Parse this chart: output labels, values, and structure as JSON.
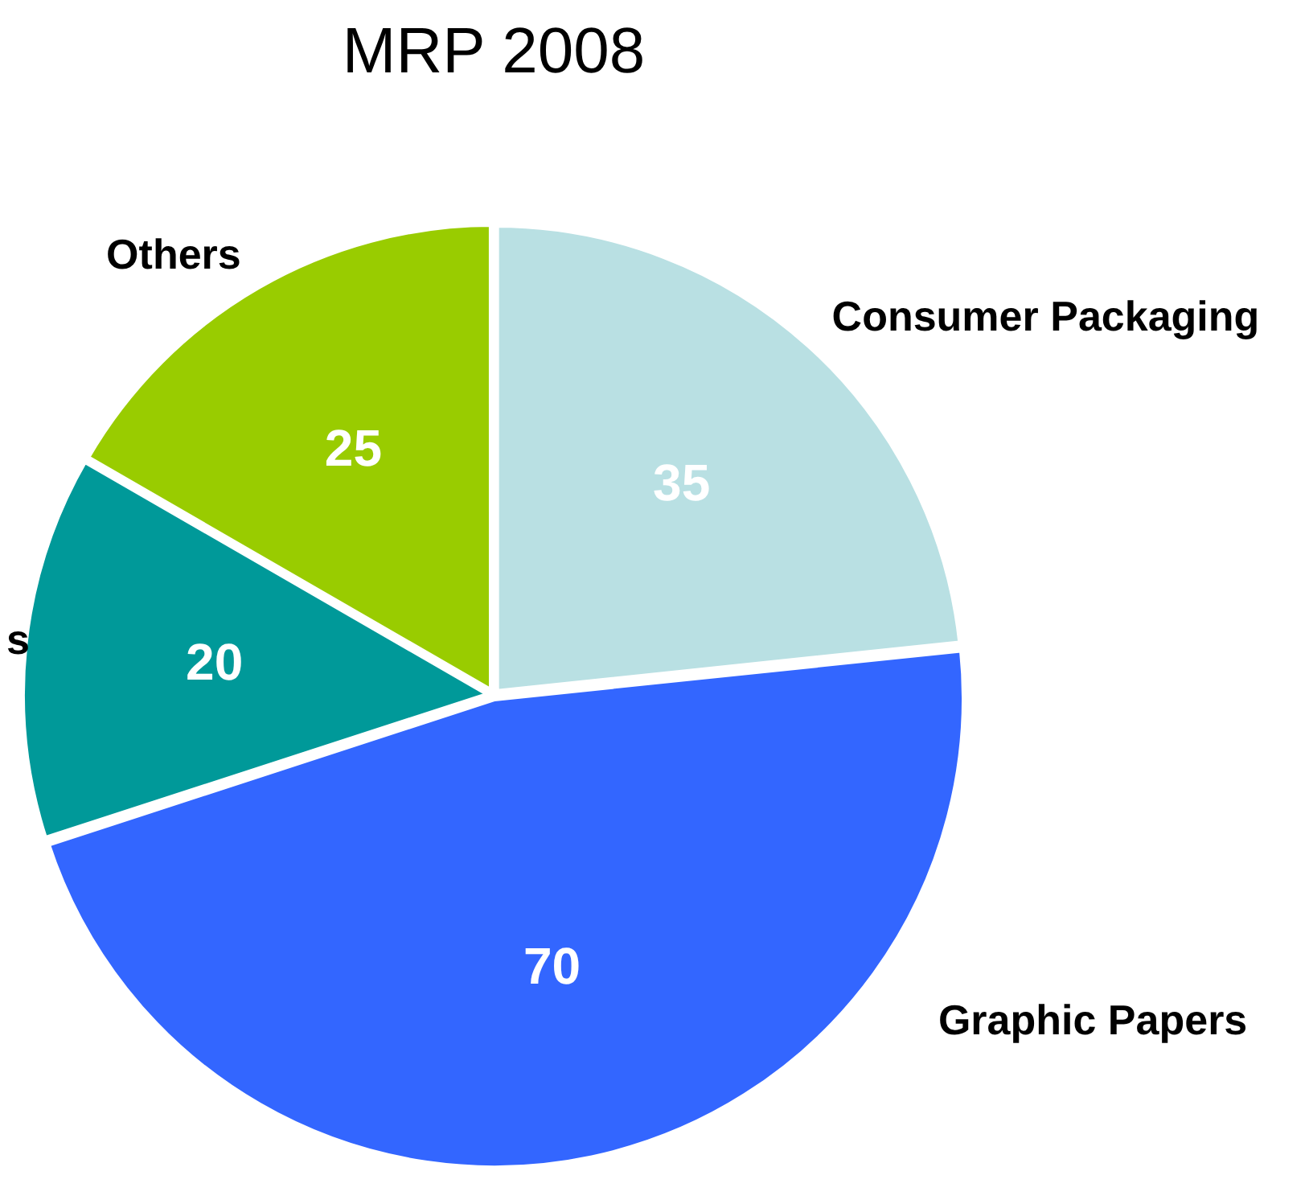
{
  "chart_data": {
    "type": "pie",
    "title": "MRP 2008",
    "categories": [
      "Consumer Packaging",
      "Graphic Papers",
      "s",
      "Others"
    ],
    "values": [
      35,
      70,
      20,
      25
    ],
    "colors": [
      "#b9e0e3",
      "#3366ff",
      "#009999",
      "#99cc00"
    ],
    "data_labels": true,
    "legend": false
  }
}
